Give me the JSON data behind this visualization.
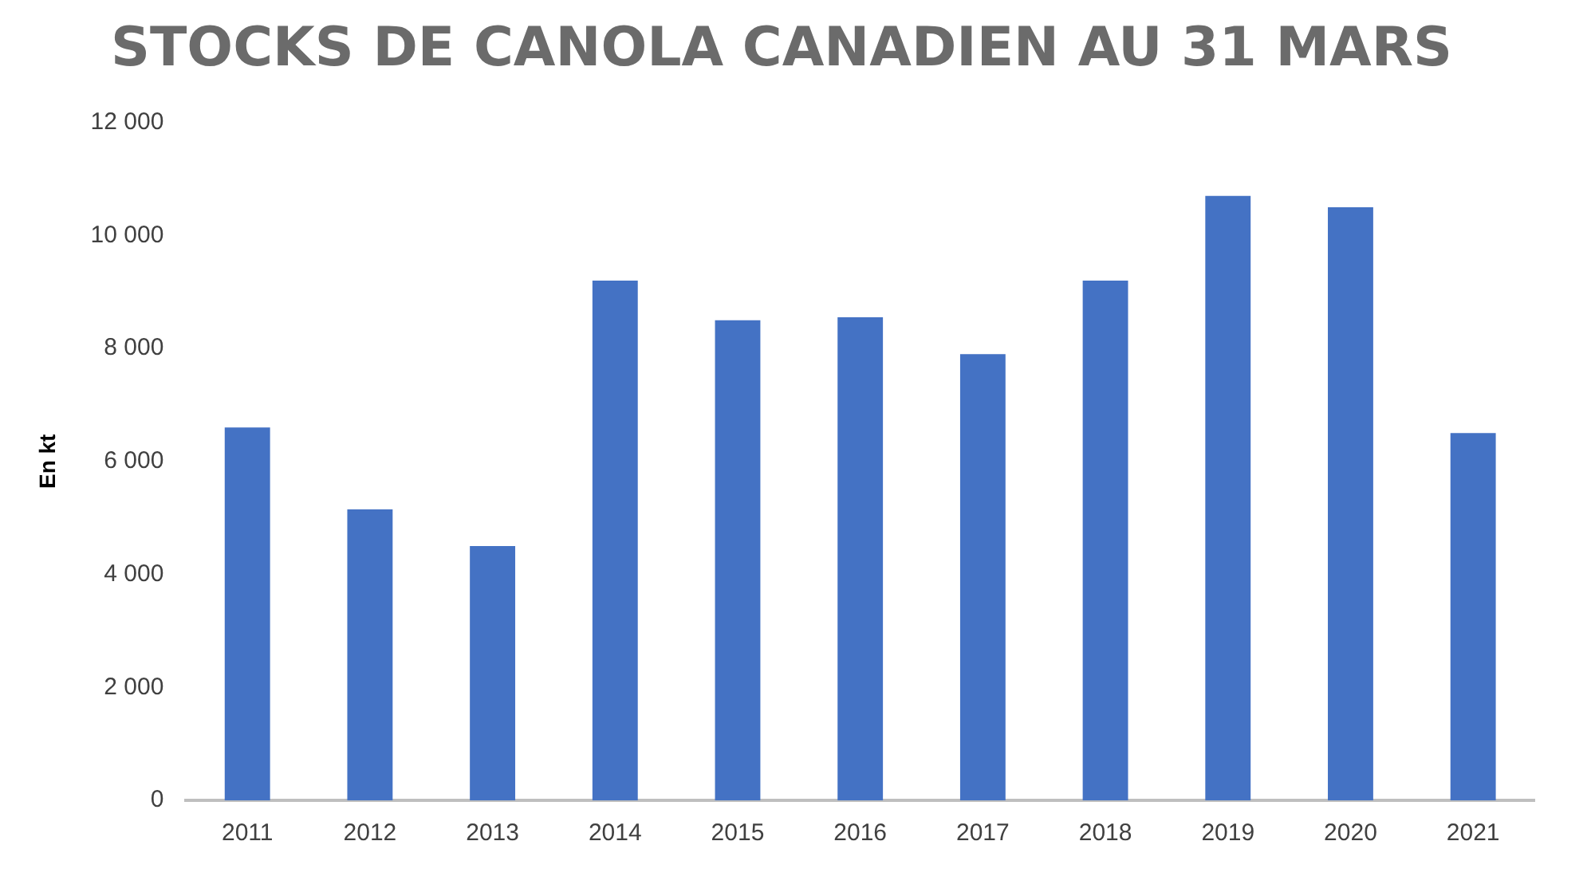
{
  "chart_data": {
    "type": "bar",
    "title": "STOCKS DE CANOLA CANADIEN AU 31 MARS",
    "ylabel": "En kt",
    "categories": [
      "2011",
      "2012",
      "2013",
      "2014",
      "2015",
      "2016",
      "2017",
      "2018",
      "2019",
      "2020",
      "2021"
    ],
    "values": [
      6600,
      5150,
      4500,
      9200,
      8500,
      8550,
      7900,
      9200,
      10700,
      10500,
      6500
    ],
    "color": "#4472c4",
    "ylim": [
      0,
      12000
    ],
    "yticks": [
      {
        "value": 0,
        "label": "0"
      },
      {
        "value": 2000,
        "label": "2 000"
      },
      {
        "value": 4000,
        "label": "4 000"
      },
      {
        "value": 6000,
        "label": "6 000"
      },
      {
        "value": 8000,
        "label": "8 000"
      },
      {
        "value": 10000,
        "label": "10 000"
      },
      {
        "value": 12000,
        "label": "12 000"
      }
    ],
    "grid": false,
    "legend": false
  }
}
